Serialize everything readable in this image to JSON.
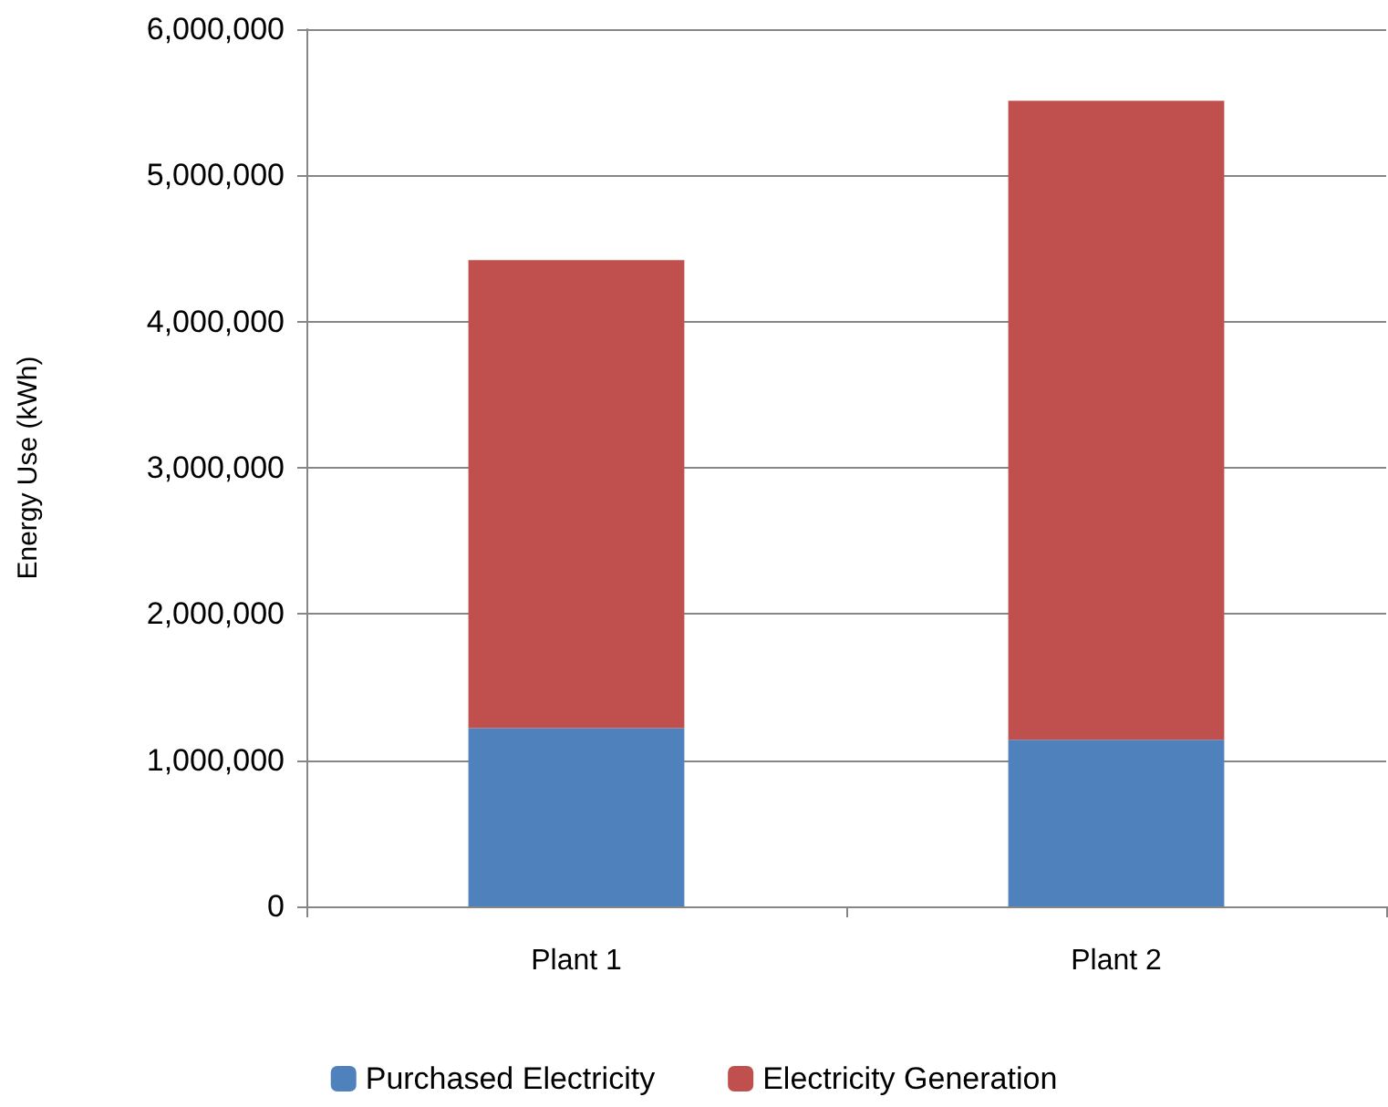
{
  "chart_data": {
    "type": "bar",
    "stacked": true,
    "ylabel": "Energy Use (kWh)",
    "categories": [
      "Plant 1",
      "Plant 2"
    ],
    "series": [
      {
        "name": "Purchased Electricity",
        "color": "#4f81bd",
        "values": [
          1220000,
          1140000
        ]
      },
      {
        "name": "Electricity Generation",
        "color": "#c0504d",
        "values": [
          3200000,
          4370000
        ]
      }
    ],
    "ylim": [
      0,
      6000000
    ],
    "yticks": [
      0,
      {
        "value": 1000000,
        "label": "1,000,000"
      },
      {
        "value": 2000000,
        "label": "2,000,000"
      },
      {
        "value": 3000000,
        "label": "3,000,000"
      },
      {
        "value": 4000000,
        "label": "4,000,000"
      },
      {
        "value": 5000000,
        "label": "5,000,000"
      },
      {
        "value": 6000000,
        "label": "6,000,000"
      }
    ],
    "grid": "y",
    "legend": "bottom"
  }
}
